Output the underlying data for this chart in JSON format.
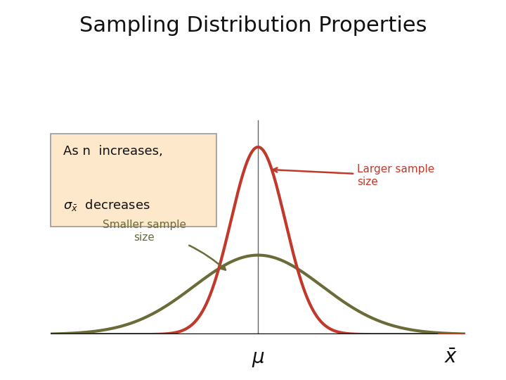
{
  "title": "Sampling Distribution Properties",
  "title_fontsize": 22,
  "background_color": "#ffffff",
  "curve_large_color": "#c0392b",
  "curve_small_color": "#6b6b3a",
  "curve_large_std": 0.55,
  "curve_small_std": 1.3,
  "curve_mean": 0.0,
  "box_facecolor": "#fde8cc",
  "box_edgecolor": "#999999",
  "label_larger": "Larger sample\nsize",
  "label_smaller": "Smaller sample\nsize",
  "label_larger_color": "#c0392b",
  "label_smaller_color": "#6b6b3a",
  "mu_label": "μ",
  "linewidth_large": 3.0,
  "linewidth_small": 3.0,
  "fig_width": 7.2,
  "fig_height": 5.4,
  "dpi": 100
}
